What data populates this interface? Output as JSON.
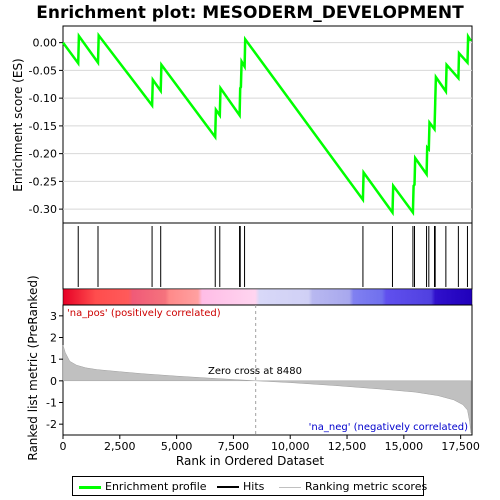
{
  "chart_data": [
    {
      "type": "line",
      "title": "Enrichment plot: MESODERM_DEVELOPMENT",
      "ylabel": "Enrichment score (ES)",
      "ylim": [
        -0.325,
        0.03
      ],
      "xlim": [
        0,
        18000
      ],
      "yticks": [
        "0.00",
        "-0.05",
        "-0.10",
        "-0.15",
        "-0.20",
        "-0.25",
        "-0.30"
      ],
      "ytick_values": [
        0,
        -0.05,
        -0.1,
        -0.15,
        -0.2,
        -0.25,
        -0.3
      ],
      "grid": true,
      "series": [
        {
          "name": "Enrichment profile",
          "color": "#00ff00",
          "x": [
            0,
            670,
            700,
            1540,
            1570,
            3920,
            3950,
            4300,
            4330,
            6700,
            6730,
            6900,
            6930,
            7770,
            7800,
            7830,
            7860,
            7990,
            8020,
            13200,
            13230,
            14500,
            14530,
            15400,
            15430,
            15470,
            15500,
            16000,
            16030,
            16100,
            16130,
            16350,
            16380,
            16380,
            16410,
            16850,
            16880,
            17400,
            17430,
            17800,
            17830,
            17950
          ],
          "y": [
            0.0,
            -0.037,
            0.012,
            -0.036,
            0.013,
            -0.113,
            -0.067,
            -0.087,
            -0.04,
            -0.17,
            -0.121,
            -0.131,
            -0.082,
            -0.131,
            -0.082,
            -0.08,
            -0.034,
            -0.043,
            0.006,
            -0.283,
            -0.234,
            -0.306,
            -0.258,
            -0.306,
            -0.258,
            -0.256,
            -0.208,
            -0.237,
            -0.189,
            -0.192,
            -0.144,
            -0.156,
            -0.11,
            -0.108,
            -0.062,
            -0.088,
            -0.04,
            -0.064,
            -0.019,
            -0.036,
            0.011,
            0.003
          ]
        }
      ]
    },
    {
      "type": "scatter",
      "name": "Hits",
      "hits": [
        670,
        1540,
        3920,
        4300,
        6700,
        6900,
        7770,
        7800,
        7990,
        13200,
        14500,
        15400,
        15470,
        16000,
        16100,
        16350,
        16380,
        16850,
        17400,
        17800
      ]
    },
    {
      "type": "area",
      "ylabel": "Ranked list metric (PreRanked)",
      "xlabel": "Rank in Ordered Dataset",
      "xlim": [
        0,
        18000
      ],
      "ylim": [
        -2.5,
        3.5
      ],
      "xticks": [
        "0",
        "2,500",
        "5,000",
        "7,500",
        "10,000",
        "12,500",
        "15,000",
        "17,500"
      ],
      "xtick_values": [
        0,
        2500,
        5000,
        7500,
        10000,
        12500,
        15000,
        17500
      ],
      "yticks": [
        "3",
        "2",
        "1",
        "0",
        "-1",
        "-2"
      ],
      "ytick_values": [
        3,
        2,
        1,
        0,
        -1,
        -2
      ],
      "series": [
        {
          "name": "Ranking metric scores",
          "color": "#c0c0c0",
          "x": [
            0,
            100,
            300,
            600,
            1000,
            1500,
            2500,
            3500,
            5000,
            6500,
            8480,
            10000,
            12000,
            14000,
            15500,
            16500,
            17200,
            17600,
            17800,
            17900,
            17950
          ],
          "y": [
            1.65,
            1.3,
            0.9,
            0.72,
            0.6,
            0.52,
            0.42,
            0.33,
            0.22,
            0.12,
            0.0,
            -0.08,
            -0.22,
            -0.38,
            -0.52,
            -0.68,
            -0.88,
            -1.1,
            -1.35,
            -1.9,
            -2.4
          ]
        }
      ],
      "annotations": {
        "pos_label": "'na_pos' (positively correlated)",
        "neg_label": "'na_neg' (negatively correlated)",
        "zero_cross": "Zero cross at 8480",
        "zero_cross_rank": 8480
      }
    }
  ],
  "colors": {
    "profile": "#00ff00",
    "hits": "#000000",
    "metric": "#c0c0c0",
    "pos_text": "#cc0000",
    "neg_text": "#0000cc"
  },
  "legend": {
    "items": [
      "Enrichment profile",
      "Hits",
      "Ranking metric scores"
    ]
  }
}
